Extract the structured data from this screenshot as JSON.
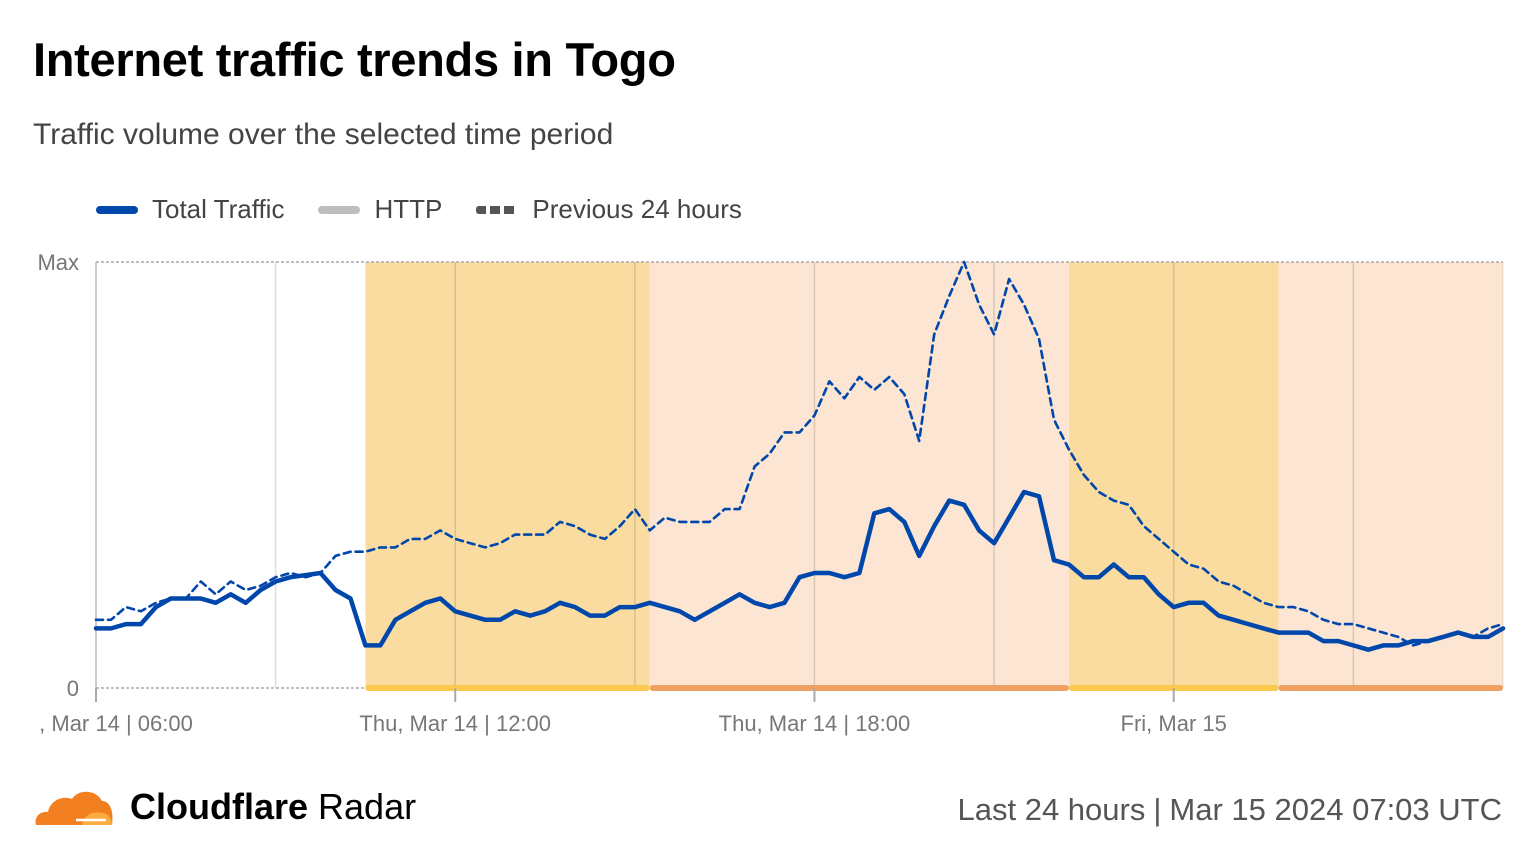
{
  "header": {
    "title": "Internet traffic trends in Togo",
    "subtitle": "Traffic volume over the selected time period"
  },
  "legend": [
    {
      "label": "Total Traffic",
      "color": "#0047ab",
      "style": "solid"
    },
    {
      "label": "HTTP",
      "color": "#bdbdbd",
      "style": "solid"
    },
    {
      "label": "Previous 24 hours",
      "color": "#555555",
      "style": "dashed"
    }
  ],
  "chart_data": {
    "type": "line",
    "title": "",
    "xlabel": "",
    "ylabel": "",
    "ylim": [
      0,
      1
    ],
    "y_tick_labels": [
      {
        "value": 0,
        "label": "0"
      },
      {
        "value": 1,
        "label": "Max"
      }
    ],
    "xlim": [
      "Mar 14 06:00",
      "Mar 15 05:30"
    ],
    "x_tick_labels": [
      {
        "time": "Mar 14 06:00",
        "label": ", Mar 14 | 06:00"
      },
      {
        "time": "Mar 14 12:00",
        "label": "Thu, Mar 14 | 12:00"
      },
      {
        "time": "Mar 14 18:00",
        "label": "Thu, Mar 14 | 18:00"
      },
      {
        "time": "Mar 15 00:00",
        "label": "Fri, Mar 15"
      }
    ],
    "gridlines_every_hours": 3,
    "grid": true,
    "legend_position": "top-left",
    "highlight_periods": [
      {
        "start": "Mar 14 10:30",
        "end": "Mar 14 15:15",
        "color": "#fbdca0",
        "bar_color": "#fbc94e"
      },
      {
        "start": "Mar 14 15:15",
        "end": "Mar 14 22:15",
        "color": "#fce5d2",
        "bar_color": "#f0a060"
      },
      {
        "start": "Mar 14 22:15",
        "end": "Mar 15 01:45",
        "color": "#fbdca0",
        "bar_color": "#fbc94e"
      },
      {
        "start": "Mar 15 01:45",
        "end": "Mar 15 05:30",
        "color": "#fce5d2",
        "bar_color": "#f0a060"
      }
    ],
    "x": [
      "Mar 14 06:00",
      "Mar 14 06:15",
      "Mar 14 06:30",
      "Mar 14 06:45",
      "Mar 14 07:00",
      "Mar 14 07:15",
      "Mar 14 07:30",
      "Mar 14 07:45",
      "Mar 14 08:00",
      "Mar 14 08:15",
      "Mar 14 08:30",
      "Mar 14 08:45",
      "Mar 14 09:00",
      "Mar 14 09:15",
      "Mar 14 09:30",
      "Mar 14 09:45",
      "Mar 14 10:00",
      "Mar 14 10:15",
      "Mar 14 10:30",
      "Mar 14 10:45",
      "Mar 14 11:00",
      "Mar 14 11:15",
      "Mar 14 11:30",
      "Mar 14 11:45",
      "Mar 14 12:00",
      "Mar 14 12:15",
      "Mar 14 12:30",
      "Mar 14 12:45",
      "Mar 14 13:00",
      "Mar 14 13:15",
      "Mar 14 13:30",
      "Mar 14 13:45",
      "Mar 14 14:00",
      "Mar 14 14:15",
      "Mar 14 14:30",
      "Mar 14 14:45",
      "Mar 14 15:00",
      "Mar 14 15:15",
      "Mar 14 15:30",
      "Mar 14 15:45",
      "Mar 14 16:00",
      "Mar 14 16:15",
      "Mar 14 16:30",
      "Mar 14 16:45",
      "Mar 14 17:00",
      "Mar 14 17:15",
      "Mar 14 17:30",
      "Mar 14 17:45",
      "Mar 14 18:00",
      "Mar 14 18:15",
      "Mar 14 18:30",
      "Mar 14 18:45",
      "Mar 14 19:00",
      "Mar 14 19:15",
      "Mar 14 19:30",
      "Mar 14 19:45",
      "Mar 14 20:00",
      "Mar 14 20:15",
      "Mar 14 20:30",
      "Mar 14 20:45",
      "Mar 14 21:00",
      "Mar 14 21:15",
      "Mar 14 21:30",
      "Mar 14 21:45",
      "Mar 14 22:00",
      "Mar 14 22:15",
      "Mar 14 22:30",
      "Mar 14 22:45",
      "Mar 14 23:00",
      "Mar 14 23:15",
      "Mar 14 23:30",
      "Mar 14 23:45",
      "Mar 15 00:00",
      "Mar 15 00:15",
      "Mar 15 00:30",
      "Mar 15 00:45",
      "Mar 15 01:00",
      "Mar 15 01:15",
      "Mar 15 01:30",
      "Mar 15 01:45",
      "Mar 15 02:00",
      "Mar 15 02:15",
      "Mar 15 02:30",
      "Mar 15 02:45",
      "Mar 15 03:00",
      "Mar 15 03:15",
      "Mar 15 03:30",
      "Mar 15 03:45",
      "Mar 15 04:00",
      "Mar 15 04:15",
      "Mar 15 04:30",
      "Mar 15 04:45",
      "Mar 15 05:00",
      "Mar 15 05:15",
      "Mar 15 05:30"
    ],
    "series": [
      {
        "name": "Total Traffic",
        "color": "#0047ab",
        "style": "solid",
        "values": [
          0.14,
          0.14,
          0.15,
          0.15,
          0.19,
          0.21,
          0.21,
          0.21,
          0.2,
          0.22,
          0.2,
          0.23,
          0.25,
          0.26,
          0.265,
          0.27,
          0.23,
          0.21,
          0.1,
          0.1,
          0.16,
          0.18,
          0.2,
          0.21,
          0.18,
          0.17,
          0.16,
          0.16,
          0.18,
          0.17,
          0.18,
          0.2,
          0.19,
          0.17,
          0.17,
          0.19,
          0.19,
          0.2,
          0.19,
          0.18,
          0.16,
          0.18,
          0.2,
          0.22,
          0.2,
          0.19,
          0.2,
          0.26,
          0.27,
          0.27,
          0.26,
          0.27,
          0.41,
          0.42,
          0.39,
          0.31,
          0.38,
          0.44,
          0.43,
          0.37,
          0.34,
          0.4,
          0.46,
          0.45,
          0.3,
          0.29,
          0.26,
          0.26,
          0.29,
          0.26,
          0.26,
          0.22,
          0.19,
          0.2,
          0.2,
          0.17,
          0.16,
          0.15,
          0.14,
          0.13,
          0.13,
          0.13,
          0.11,
          0.11,
          0.1,
          0.09,
          0.1,
          0.1,
          0.11,
          0.11,
          0.12,
          0.13,
          0.12,
          0.12,
          0.14
        ]
      },
      {
        "name": "Previous 24 hours",
        "color": "#0047ab",
        "style": "dashed",
        "values": [
          0.16,
          0.16,
          0.19,
          0.18,
          0.2,
          0.21,
          0.21,
          0.25,
          0.22,
          0.25,
          0.23,
          0.24,
          0.26,
          0.27,
          0.26,
          0.27,
          0.31,
          0.32,
          0.32,
          0.33,
          0.33,
          0.35,
          0.35,
          0.37,
          0.35,
          0.34,
          0.33,
          0.34,
          0.36,
          0.36,
          0.36,
          0.39,
          0.38,
          0.36,
          0.35,
          0.38,
          0.42,
          0.37,
          0.4,
          0.39,
          0.39,
          0.39,
          0.42,
          0.42,
          0.52,
          0.55,
          0.6,
          0.6,
          0.64,
          0.72,
          0.68,
          0.73,
          0.7,
          0.73,
          0.69,
          0.58,
          0.83,
          0.92,
          1.0,
          0.9,
          0.83,
          0.96,
          0.9,
          0.82,
          0.63,
          0.56,
          0.5,
          0.46,
          0.44,
          0.43,
          0.38,
          0.35,
          0.32,
          0.29,
          0.28,
          0.25,
          0.24,
          0.22,
          0.2,
          0.19,
          0.19,
          0.18,
          0.16,
          0.15,
          0.15,
          0.14,
          0.13,
          0.12,
          0.1,
          0.11,
          0.12,
          0.13,
          0.12,
          0.14,
          0.15
        ]
      }
    ]
  },
  "footer": {
    "brand_bold": "Cloudflare",
    "brand_rest": "Radar",
    "period": "Last 24 hours",
    "separator": "|",
    "timestamp": "Mar 15 2024 07:03 UTC",
    "logo_color": "#f38020"
  }
}
